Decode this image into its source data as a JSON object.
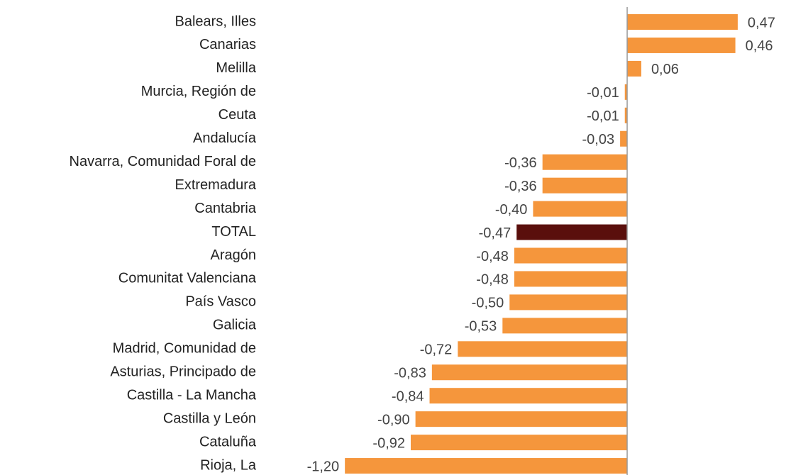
{
  "chart_data": {
    "type": "barh",
    "categories": [
      "Balears, Illes",
      "Canarias",
      "Melilla",
      "Murcia, Región de",
      "Ceuta",
      "Andalucía",
      "Navarra, Comunidad Foral de",
      "Extremadura",
      "Cantabria",
      "TOTAL",
      "Aragón",
      "Comunitat Valenciana",
      "País Vasco",
      "Galicia",
      "Madrid, Comunidad de",
      "Asturias, Principado de",
      "Castilla - La Mancha",
      "Castilla y León",
      "Cataluña",
      "Rioja, La"
    ],
    "values": [
      0.47,
      0.46,
      0.06,
      -0.01,
      -0.01,
      -0.03,
      -0.36,
      -0.36,
      -0.4,
      -0.47,
      -0.48,
      -0.48,
      -0.5,
      -0.53,
      -0.72,
      -0.83,
      -0.84,
      -0.9,
      -0.92,
      -1.2
    ],
    "value_labels": [
      "0,47",
      "0,46",
      "0,06",
      "-0,01",
      "-0,01",
      "-0,03",
      "-0,36",
      "-0,36",
      "-0,40",
      "-0,47",
      "-0,48",
      "-0,48",
      "-0,50",
      "-0,53",
      "-0,72",
      "-0,83",
      "-0,84",
      "-0,90",
      "-0,92",
      "-1,20"
    ],
    "colors": [
      "#f5963c",
      "#f5963c",
      "#f5963c",
      "#f5963c",
      "#f5963c",
      "#f5963c",
      "#f5963c",
      "#f5963c",
      "#f5963c",
      "#5a0f0c",
      "#f5963c",
      "#f5963c",
      "#f5963c",
      "#f5963c",
      "#f5963c",
      "#f5963c",
      "#f5963c",
      "#f5963c",
      "#f5963c",
      "#f5963c"
    ],
    "xlim": [
      -1.3,
      0.6
    ]
  }
}
